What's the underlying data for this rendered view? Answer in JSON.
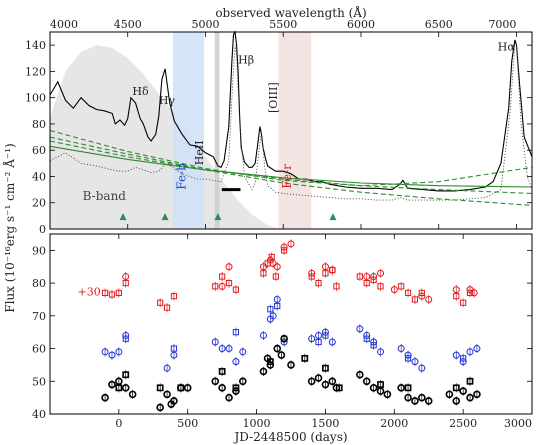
{
  "chart_data": [
    {
      "type": "line",
      "panel": "spectrum",
      "top_axis": {
        "label": "observed wavelength (Å)",
        "range": [
          4000,
          7100
        ],
        "ticks": [
          "4000",
          "4500",
          "5000",
          "5500",
          "6000",
          "6500",
          "7000"
        ]
      },
      "y_axis": {
        "range": [
          0,
          150
        ],
        "ticks": [
          "0",
          "20",
          "40",
          "60",
          "80",
          "100",
          "120",
          "140"
        ]
      },
      "shared_ylabel": "Flux (10⁻¹⁶erg s⁻¹ cm⁻² Å⁻¹)",
      "line_labels": [
        {
          "text": "Hδ",
          "x": 4530,
          "y": 102
        },
        {
          "text": "Hγ",
          "x": 4700,
          "y": 95
        },
        {
          "text": "HeII",
          "x": 4985,
          "y": 58,
          "rotated": true
        },
        {
          "text": "Hβ",
          "x": 5210,
          "y": 126
        },
        {
          "text": "[OIII]",
          "x": 5460,
          "y": 100,
          "rotated": true
        },
        {
          "text": "Hα",
          "x": 6880,
          "y": 136
        }
      ],
      "band_labels": [
        {
          "text": "B-band",
          "x": 4210,
          "y": 22,
          "color": "#444444"
        },
        {
          "text": "Fe-b",
          "x": 4870,
          "y": 40,
          "rotated": true,
          "color": "#1f4fbf"
        },
        {
          "text": "Fe-r",
          "x": 5550,
          "y": 40,
          "rotated": true,
          "color": "#d62728"
        }
      ],
      "shaded_regions": [
        {
          "name": "Fe-b window",
          "range": [
            4790,
            4990
          ],
          "color": "#cfe2f7"
        },
        {
          "name": "HeII window",
          "range": [
            5060,
            5090
          ],
          "color": "#cccccc"
        },
        {
          "name": "Fe-r window",
          "range": [
            5470,
            5680
          ],
          "color": "#f2dede"
        }
      ],
      "bar_marker": {
        "x": [
          5105,
          5225
        ],
        "y": 30,
        "color": "#000000"
      },
      "triangles": {
        "x": [
          4470,
          4740,
          5080,
          5820
        ],
        "y": 9,
        "color": "#2e8b57"
      },
      "b_band_curve": {
        "x": [
          4000,
          4100,
          4200,
          4300,
          4400,
          4500,
          4600,
          4700,
          4800,
          4900,
          5000,
          5100,
          5200,
          5300,
          5400,
          5470
        ],
        "y": [
          85,
          120,
          135,
          140,
          138,
          130,
          118,
          103,
          88,
          72,
          55,
          38,
          23,
          11,
          3,
          0
        ],
        "color": "#e6e6e6"
      },
      "series": [
        {
          "style": "solid",
          "color": "#000000",
          "x": [
            4000,
            4050,
            4100,
            4150,
            4200,
            4250,
            4300,
            4350,
            4400,
            4420,
            4450,
            4480,
            4500,
            4520,
            4550,
            4580,
            4600,
            4630,
            4650,
            4680,
            4700,
            4720,
            4740,
            4770,
            4800,
            4850,
            4900,
            4950,
            5000,
            5050,
            5080,
            5100,
            5120,
            5150,
            5170,
            5180,
            5190,
            5200,
            5210,
            5220,
            5230,
            5250,
            5280,
            5300,
            5320,
            5340,
            5350,
            5360,
            5370,
            5390,
            5400,
            5450,
            5500,
            5550,
            5600,
            5650,
            5700,
            5750,
            5800,
            5900,
            6000,
            6100,
            6200,
            6250,
            6270,
            6300,
            6400,
            6500,
            6600,
            6700,
            6800,
            6850,
            6900,
            6950,
            6970,
            6990,
            7000,
            7020,
            7050,
            7100
          ],
          "y": [
            102,
            112,
            98,
            92,
            100,
            94,
            91,
            90,
            88,
            80,
            83,
            79,
            84,
            100,
            96,
            84,
            80,
            70,
            67,
            72,
            86,
            114,
            122,
            96,
            82,
            72,
            64,
            63,
            58,
            55,
            48,
            47,
            52,
            78,
            128,
            148,
            150,
            140,
            120,
            85,
            62,
            51,
            47,
            47,
            50,
            68,
            78,
            72,
            62,
            52,
            48,
            44,
            44,
            42,
            38,
            38,
            36,
            36,
            34,
            32,
            31,
            31,
            30,
            34,
            37,
            31,
            30,
            29,
            29,
            30,
            32,
            36,
            50,
            92,
            128,
            144,
            140,
            110,
            70,
            55
          ]
        },
        {
          "style": "dotted",
          "color": "#555555",
          "x": [
            4000,
            4100,
            4200,
            4300,
            4400,
            4450,
            4500,
            4550,
            4600,
            4650,
            4700,
            4750,
            4800,
            4850,
            4900,
            4950,
            5000,
            5050,
            5100,
            5150,
            5170,
            5190,
            5200,
            5220,
            5250,
            5300,
            5320,
            5350,
            5360,
            5380,
            5400,
            5450,
            5500,
            5600,
            5700,
            5800,
            5900,
            6000,
            6100,
            6200,
            6250,
            6300,
            6400,
            6500,
            6600,
            6700,
            6800,
            6900,
            6960,
            6990,
            7000,
            7030,
            7070,
            7100
          ],
          "y": [
            52,
            58,
            50,
            48,
            45,
            44,
            44,
            47,
            45,
            43,
            44,
            50,
            46,
            42,
            40,
            38,
            38,
            37,
            36,
            52,
            100,
            140,
            132,
            80,
            40,
            30,
            35,
            65,
            75,
            48,
            33,
            28,
            27,
            26,
            25,
            24,
            23,
            23,
            22,
            22,
            24,
            22,
            22,
            22,
            22,
            23,
            24,
            30,
            90,
            142,
            140,
            80,
            40,
            30
          ]
        },
        {
          "style": "solid",
          "color": "#2e8b2e",
          "x": [
            4000,
            4500,
            5000,
            5500,
            6000,
            6500,
            7100
          ],
          "y": [
            63,
            53,
            45,
            39,
            35,
            33,
            32
          ]
        },
        {
          "style": "dashed",
          "color": "#2e8b2e",
          "x": [
            4000,
            4500,
            5000,
            5500,
            6000,
            6500,
            7100
          ],
          "y": [
            75,
            59,
            46,
            37,
            33,
            36,
            47
          ]
        },
        {
          "style": "dashed",
          "color": "#2e8b2e",
          "x": [
            4000,
            4500,
            5000,
            5500,
            6000,
            6500,
            7100
          ],
          "y": [
            70,
            57,
            45,
            35,
            28,
            23,
            18
          ]
        },
        {
          "style": "dashed",
          "color": "#2e8b2e",
          "x": [
            4000,
            4500,
            5000,
            5500,
            6000,
            6500,
            7100
          ],
          "y": [
            67,
            55,
            45,
            38,
            33,
            30,
            27
          ]
        }
      ]
    },
    {
      "type": "scatter",
      "panel": "light-curves",
      "xlabel": "JD-2448500 (days)",
      "xlim": [
        -500,
        3000
      ],
      "ylim": [
        40,
        95
      ],
      "x_ticks": [
        "0",
        "500",
        "1000",
        "1500",
        "2000",
        "2500",
        "3000"
      ],
      "y_ticks": [
        "40",
        "50",
        "60",
        "70",
        "80",
        "90"
      ],
      "annotation": {
        "text": "+30",
        "x": -300,
        "y": 77.5,
        "color": "#e41a1c"
      },
      "series": [
        {
          "color": "#e41a1c",
          "marker": "open-square",
          "x": [
            -100,
            -50,
            0,
            50,
            300,
            350,
            400,
            700,
            750,
            800,
            850,
            1050,
            1080,
            1110,
            1140,
            1200,
            1400,
            1450,
            1500,
            1550,
            1580,
            1750,
            1800,
            1850,
            1900,
            2050,
            2100,
            2150,
            2200,
            2450,
            2500,
            2550
          ],
          "y": [
            77,
            76.5,
            77,
            80,
            74,
            72.5,
            76,
            79,
            82,
            80,
            78,
            83,
            86,
            88,
            82,
            90,
            82,
            80,
            83,
            84,
            79,
            82,
            80,
            81,
            79,
            79,
            77,
            75,
            77,
            76,
            74,
            77
          ]
        },
        {
          "color": "#e41a1c",
          "marker": "open-circle",
          "x": [
            50,
            750,
            800,
            1050,
            1100,
            1120,
            1150,
            1200,
            1250,
            1400,
            1500,
            1550,
            1800,
            1850,
            1900,
            2000,
            2200,
            2250,
            2450,
            2550,
            2580
          ],
          "y": [
            82,
            79,
            85,
            85,
            87,
            86,
            85,
            91,
            92,
            83,
            85,
            84,
            82,
            82,
            83,
            78,
            76,
            75,
            78,
            78,
            77
          ]
        },
        {
          "color": "#1f2fd6",
          "marker": "open-circle",
          "x": [
            -100,
            -50,
            0,
            50,
            350,
            400,
            700,
            750,
            800,
            850,
            900,
            1050,
            1100,
            1120,
            1150,
            1200,
            1400,
            1450,
            1500,
            1550,
            1750,
            1800,
            1850,
            1900,
            2050,
            2100,
            2150,
            2200,
            2450,
            2500,
            2550,
            2600
          ],
          "y": [
            59,
            58,
            59,
            64,
            54,
            58,
            62,
            60,
            60,
            56,
            59,
            64,
            69,
            70,
            75,
            62,
            63,
            64,
            65,
            62,
            66,
            64,
            62,
            59,
            60,
            58,
            56,
            54,
            58,
            56,
            59,
            60
          ]
        },
        {
          "color": "#1f2fd6",
          "marker": "open-square",
          "x": [
            50,
            400,
            850,
            1100,
            1150,
            1200,
            1450,
            1500,
            1800,
            1850,
            2100,
            2500
          ],
          "y": [
            63,
            60,
            65,
            72,
            73,
            63,
            62,
            64,
            63,
            61,
            57,
            57
          ]
        },
        {
          "color": "#000000",
          "marker": "open-circle",
          "x": [
            -100,
            -50,
            0,
            50,
            100,
            300,
            350,
            380,
            400,
            450,
            500,
            700,
            750,
            800,
            850,
            900,
            1050,
            1080,
            1100,
            1150,
            1180,
            1200,
            1250,
            1400,
            1450,
            1500,
            1550,
            1580,
            1750,
            1800,
            1850,
            1900,
            1950,
            2050,
            2100,
            2150,
            2200,
            2250,
            2400,
            2450,
            2500,
            2550,
            2600
          ],
          "y": [
            45,
            49,
            50,
            48,
            46,
            42,
            46,
            43,
            44,
            48,
            48,
            50,
            48,
            45,
            47,
            50,
            53,
            57,
            55,
            60,
            58,
            63,
            55,
            50,
            51,
            49,
            50,
            48,
            52,
            50,
            48,
            47,
            46,
            48,
            45,
            44,
            45,
            44,
            46,
            44,
            47,
            45,
            46
          ]
        },
        {
          "color": "#000000",
          "marker": "open-square",
          "x": [
            0,
            50,
            300,
            450,
            750,
            850,
            1100,
            1350,
            1500,
            1600,
            1900,
            2100,
            2450,
            2550
          ],
          "y": [
            48,
            52,
            48,
            48,
            53,
            48,
            56,
            57,
            54,
            48,
            49,
            48,
            48,
            50
          ]
        }
      ]
    }
  ]
}
